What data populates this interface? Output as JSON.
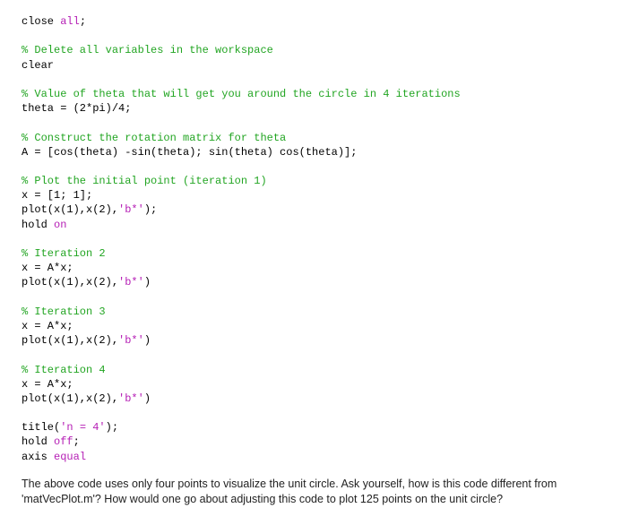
{
  "code": {
    "colors": {
      "keyword": "#0000cc",
      "string": "#b51eb5",
      "comment": "#22a522",
      "plain": "#000000",
      "background": "#ffffff"
    },
    "font": {
      "family_code": "Menlo, Monaco, 'Courier New', monospace",
      "family_text": "'Helvetica Neue', Arial, sans-serif",
      "size_code_pt": 9,
      "size_text_pt": 9.5,
      "line_height": 1.35
    },
    "lines": [
      {
        "tokens": [
          {
            "t": "close ",
            "c": "plain"
          },
          {
            "t": "all",
            "c": "string"
          },
          {
            "t": ";",
            "c": "plain"
          }
        ]
      },
      {
        "tokens": []
      },
      {
        "tokens": [
          {
            "t": "% Delete all variables in the workspace",
            "c": "comment"
          }
        ]
      },
      {
        "tokens": [
          {
            "t": "clear",
            "c": "plain"
          }
        ]
      },
      {
        "tokens": []
      },
      {
        "tokens": [
          {
            "t": "% Value of theta that will get you around the circle in 4 iterations",
            "c": "comment"
          }
        ]
      },
      {
        "tokens": [
          {
            "t": "theta = (2*pi)/4;",
            "c": "plain"
          }
        ]
      },
      {
        "tokens": []
      },
      {
        "tokens": [
          {
            "t": "% Construct the rotation matrix for theta",
            "c": "comment"
          }
        ]
      },
      {
        "tokens": [
          {
            "t": "A = [cos(theta) -sin(theta); sin(theta) cos(theta)];",
            "c": "plain"
          }
        ]
      },
      {
        "tokens": []
      },
      {
        "tokens": [
          {
            "t": "% Plot the initial point (iteration 1)",
            "c": "comment"
          }
        ]
      },
      {
        "tokens": [
          {
            "t": "x = [1; 1];",
            "c": "plain"
          }
        ]
      },
      {
        "tokens": [
          {
            "t": "plot(x(1),x(2),",
            "c": "plain"
          },
          {
            "t": "'b*'",
            "c": "string"
          },
          {
            "t": ");",
            "c": "plain"
          }
        ]
      },
      {
        "tokens": [
          {
            "t": "hold ",
            "c": "plain"
          },
          {
            "t": "on",
            "c": "string"
          }
        ]
      },
      {
        "tokens": []
      },
      {
        "tokens": [
          {
            "t": "% Iteration 2",
            "c": "comment"
          }
        ]
      },
      {
        "tokens": [
          {
            "t": "x = A*x;",
            "c": "plain"
          }
        ]
      },
      {
        "tokens": [
          {
            "t": "plot(x(1),x(2),",
            "c": "plain"
          },
          {
            "t": "'b*'",
            "c": "string"
          },
          {
            "t": ")",
            "c": "plain"
          }
        ]
      },
      {
        "tokens": []
      },
      {
        "tokens": [
          {
            "t": "% Iteration 3",
            "c": "comment"
          }
        ]
      },
      {
        "tokens": [
          {
            "t": "x = A*x;",
            "c": "plain"
          }
        ]
      },
      {
        "tokens": [
          {
            "t": "plot(x(1),x(2),",
            "c": "plain"
          },
          {
            "t": "'b*'",
            "c": "string"
          },
          {
            "t": ")",
            "c": "plain"
          }
        ]
      },
      {
        "tokens": []
      },
      {
        "tokens": [
          {
            "t": "% Iteration 4",
            "c": "comment"
          }
        ]
      },
      {
        "tokens": [
          {
            "t": "x = A*x;",
            "c": "plain"
          }
        ]
      },
      {
        "tokens": [
          {
            "t": "plot(x(1),x(2),",
            "c": "plain"
          },
          {
            "t": "'b*'",
            "c": "string"
          },
          {
            "t": ")",
            "c": "plain"
          }
        ]
      },
      {
        "tokens": []
      },
      {
        "tokens": [
          {
            "t": "title(",
            "c": "plain"
          },
          {
            "t": "'n = 4'",
            "c": "string"
          },
          {
            "t": ");",
            "c": "plain"
          }
        ]
      },
      {
        "tokens": [
          {
            "t": "hold ",
            "c": "plain"
          },
          {
            "t": "off",
            "c": "string"
          },
          {
            "t": ";",
            "c": "plain"
          }
        ]
      },
      {
        "tokens": [
          {
            "t": "axis ",
            "c": "plain"
          },
          {
            "t": "equal",
            "c": "string"
          }
        ]
      }
    ]
  },
  "paragraph": "The above code uses only four points to visualize the unit circle. Ask yourself, how is this code different from 'matVecPlot.m'? How would one go about adjusting this code to plot 125 points on the unit circle?"
}
